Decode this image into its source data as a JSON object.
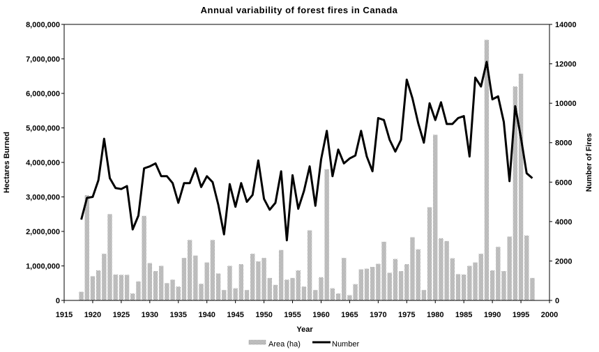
{
  "chart_data": {
    "type": "bar",
    "title": "Annual variability of forest fires in Canada",
    "xlabel": "Year",
    "ylabel_left": "Hectares Burned",
    "ylabel_right": "Number of Fires",
    "xlim": [
      1915,
      2000
    ],
    "xticks": [
      "1915",
      "1920",
      "1925",
      "1930",
      "1935",
      "1940",
      "1945",
      "1950",
      "1955",
      "1960",
      "1965",
      "1970",
      "1975",
      "1980",
      "1985",
      "1990",
      "1995",
      "2000"
    ],
    "ylim_left": [
      0,
      8000000
    ],
    "yticks_left": [
      "0",
      "1,000,000",
      "2,000,000",
      "3,000,000",
      "4,000,000",
      "5,000,000",
      "6,000,000",
      "7,000,000",
      "8,000,000"
    ],
    "ylim_right": [
      0,
      14000
    ],
    "yticks_right": [
      "0",
      "2000",
      "4000",
      "6000",
      "8000",
      "10000",
      "12000",
      "14000"
    ],
    "legend_position": "bottom",
    "legend": {
      "area": "Area (ha)",
      "number": "Number"
    },
    "colors": {
      "bars": "#9a9a9a",
      "line": "#000000"
    },
    "years": [
      1918,
      1919,
      1920,
      1921,
      1922,
      1923,
      1924,
      1925,
      1926,
      1927,
      1928,
      1929,
      1930,
      1931,
      1932,
      1933,
      1934,
      1935,
      1936,
      1937,
      1938,
      1939,
      1940,
      1941,
      1942,
      1943,
      1944,
      1945,
      1946,
      1947,
      1948,
      1949,
      1950,
      1951,
      1952,
      1953,
      1954,
      1955,
      1956,
      1957,
      1958,
      1959,
      1960,
      1961,
      1962,
      1963,
      1964,
      1965,
      1966,
      1967,
      1968,
      1969,
      1970,
      1971,
      1972,
      1973,
      1974,
      1975,
      1976,
      1977,
      1978,
      1979,
      1980,
      1981,
      1982,
      1983,
      1984,
      1985,
      1986,
      1987,
      1988,
      1989,
      1990,
      1991,
      1992,
      1993,
      1994,
      1995,
      1996,
      1997
    ],
    "series": [
      {
        "name": "Area (ha)",
        "axis": "left",
        "values": [
          250000,
          3050000,
          700000,
          870000,
          1350000,
          2500000,
          750000,
          740000,
          740000,
          200000,
          550000,
          2450000,
          1080000,
          850000,
          1000000,
          500000,
          600000,
          400000,
          1230000,
          1750000,
          1300000,
          480000,
          1100000,
          1750000,
          780000,
          300000,
          1000000,
          350000,
          1050000,
          300000,
          1350000,
          1130000,
          1230000,
          650000,
          450000,
          1460000,
          600000,
          650000,
          870000,
          400000,
          2030000,
          300000,
          670000,
          3800000,
          350000,
          200000,
          1230000,
          150000,
          470000,
          900000,
          920000,
          970000,
          1060000,
          1700000,
          800000,
          1200000,
          850000,
          1050000,
          1830000,
          1480000,
          300000,
          2700000,
          4800000,
          1800000,
          1720000,
          1220000,
          760000,
          750000,
          1000000,
          1100000,
          1350000,
          7550000,
          870000,
          1550000,
          850000,
          1850000,
          6200000,
          6570000,
          1880000,
          650000
        ]
      },
      {
        "name": "Number",
        "axis": "right",
        "values": [
          4100,
          5200,
          5250,
          6100,
          8200,
          6200,
          5700,
          5650,
          5800,
          3600,
          4300,
          6700,
          6800,
          6950,
          6300,
          6300,
          5950,
          4950,
          5950,
          5950,
          6700,
          5750,
          6300,
          6000,
          4850,
          3350,
          5900,
          4750,
          5950,
          5000,
          5350,
          7100,
          5150,
          4600,
          4950,
          6550,
          3050,
          6350,
          4650,
          5550,
          6800,
          4800,
          7150,
          8600,
          6300,
          7650,
          6950,
          7200,
          7350,
          8600,
          7300,
          6550,
          9250,
          9150,
          8150,
          7550,
          8150,
          11200,
          10250,
          9000,
          8000,
          10000,
          9150,
          10050,
          8950,
          8950,
          9250,
          9350,
          7300,
          11300,
          10850,
          12100,
          10200,
          10350,
          9050,
          6050,
          9850,
          8250,
          6450,
          6200
        ]
      }
    ]
  }
}
